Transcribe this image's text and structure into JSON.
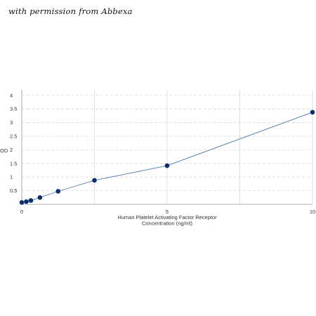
{
  "watermark": "with permission from Abbexa",
  "chart_data": {
    "type": "scatter",
    "title": "",
    "xlabel_lines": [
      "Human Platelet Activating Factor Receptor",
      "Concentration (ng/ml)"
    ],
    "ylabel": "OD",
    "xlim": [
      0,
      10
    ],
    "ylim": [
      0,
      4.2
    ],
    "xticks": [
      "0",
      "5",
      "10"
    ],
    "xtick_values": [
      0,
      5,
      10
    ],
    "xgrid_values": [
      0,
      2.5,
      5,
      7.5,
      10
    ],
    "yticks": [
      "0.5",
      "1",
      "1.5",
      "2",
      "2.5",
      "3",
      "3.5",
      "4"
    ],
    "ytick_values": [
      0.5,
      1,
      1.5,
      2,
      2.5,
      3,
      3.5,
      4
    ],
    "grid": true,
    "series": [
      {
        "x": [
          0,
          0.156,
          0.313,
          0.625,
          1.25,
          2.5,
          5,
          10
        ],
        "y": [
          0.07,
          0.1,
          0.14,
          0.25,
          0.48,
          0.88,
          1.42,
          3.38
        ]
      }
    ],
    "colors": {
      "points": "#0d2f6b",
      "line": "#4f79b3",
      "grid": "#d8d8d8",
      "axis": "#999999"
    }
  }
}
